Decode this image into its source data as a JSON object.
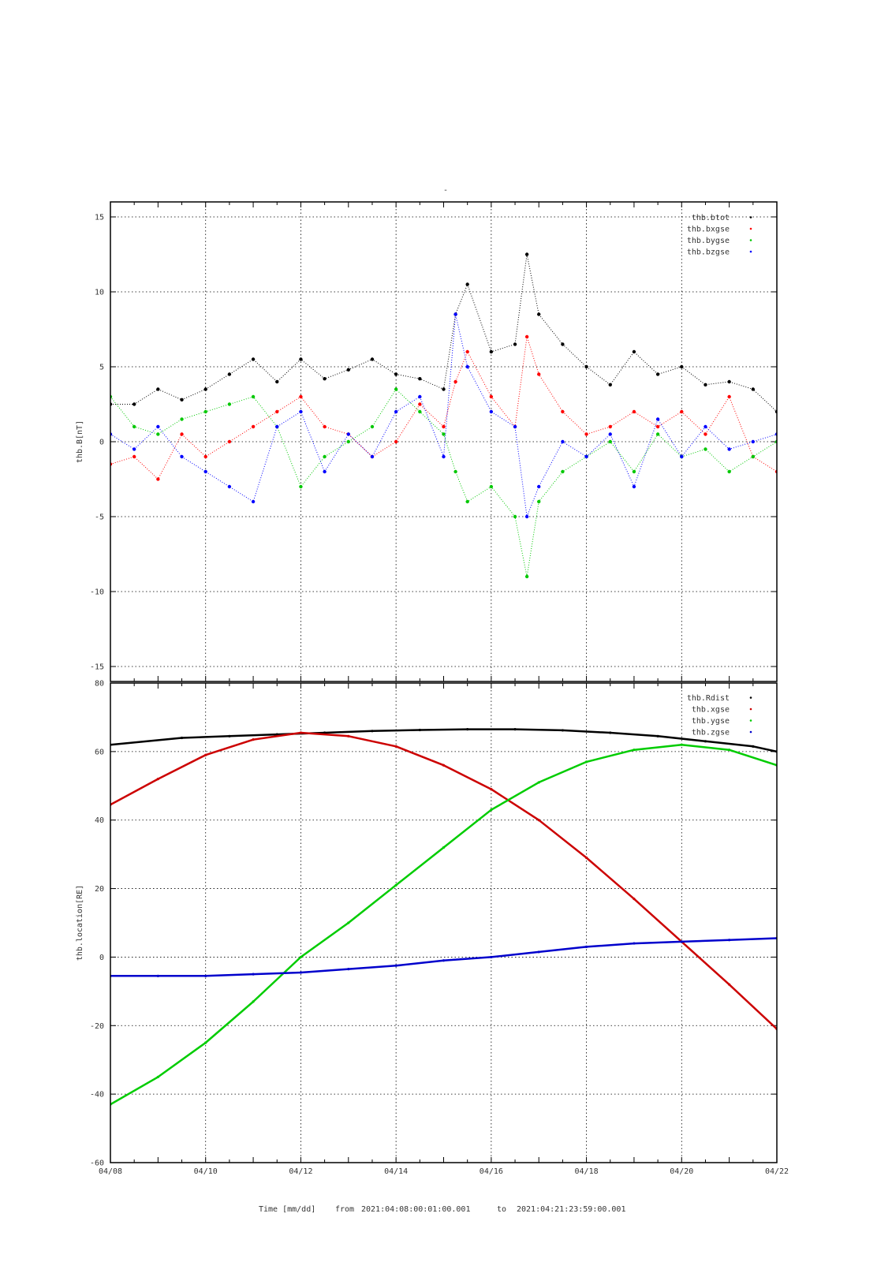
{
  "figure": {
    "top_title": "-",
    "footer": {
      "time_label": "Time [mm/dd]",
      "from_label": "from",
      "from_value": "2021:04:08:00:01:00.001",
      "to_label": "to",
      "to_value": "2021:04:21:23:59:00.001"
    }
  },
  "chart_data": [
    {
      "type": "scatter",
      "panel": "magnetic-field",
      "ylabel": "thb.B[nT]",
      "ylim": [
        -16,
        16
      ],
      "yticks": [
        "-15",
        "-10",
        "-5",
        "0",
        "5",
        "10",
        "15"
      ],
      "ytick_values": [
        -15,
        -10,
        -5,
        0,
        5,
        10,
        15
      ],
      "xlim_days": [
        8,
        22
      ],
      "grid": true,
      "legend_placement": "top-right",
      "series": [
        {
          "name": "thb.btot",
          "color": "#000000",
          "x": [
            "04/08 00:00",
            "04/08 12:00",
            "04/09 00:00",
            "04/09 12:00",
            "04/10 00:00",
            "04/10 12:00",
            "04/11 00:00",
            "04/11 12:00",
            "04/12 00:00",
            "04/12 12:00",
            "04/13 00:00",
            "04/13 12:00",
            "04/14 00:00",
            "04/14 12:00",
            "04/15 00:00",
            "04/15 06:00",
            "04/15 12:00",
            "04/16 00:00",
            "04/16 12:00",
            "04/16 18:00",
            "04/17 00:00",
            "04/17 12:00",
            "04/18 00:00",
            "04/18 12:00",
            "04/19 00:00",
            "04/19 12:00",
            "04/20 00:00",
            "04/20 12:00",
            "04/21 00:00",
            "04/21 12:00",
            "04/22 00:00"
          ],
          "values": [
            2.5,
            2.5,
            3.5,
            2.8,
            3.5,
            4.5,
            5.5,
            4.0,
            5.5,
            4.2,
            4.8,
            5.5,
            4.5,
            4.2,
            3.5,
            8.5,
            10.5,
            6.0,
            6.5,
            12.5,
            8.5,
            6.5,
            5.0,
            3.8,
            6.0,
            4.5,
            5.0,
            3.8,
            4.0,
            3.5,
            2.0
          ]
        },
        {
          "name": "thb.bxgse",
          "color": "#ff0000",
          "x": [
            "04/08 00:00",
            "04/08 12:00",
            "04/09 00:00",
            "04/09 12:00",
            "04/10 00:00",
            "04/10 12:00",
            "04/11 00:00",
            "04/11 12:00",
            "04/12 00:00",
            "04/12 12:00",
            "04/13 00:00",
            "04/13 12:00",
            "04/14 00:00",
            "04/14 12:00",
            "04/15 00:00",
            "04/15 06:00",
            "04/15 12:00",
            "04/16 00:00",
            "04/16 12:00",
            "04/16 18:00",
            "04/17 00:00",
            "04/17 12:00",
            "04/18 00:00",
            "04/18 12:00",
            "04/19 00:00",
            "04/19 12:00",
            "04/20 00:00",
            "04/20 12:00",
            "04/21 00:00",
            "04/21 12:00",
            "04/22 00:00"
          ],
          "values": [
            -1.5,
            -1.0,
            -2.5,
            0.5,
            -1.0,
            0.0,
            1.0,
            2.0,
            3.0,
            1.0,
            0.5,
            -1.0,
            0.0,
            2.5,
            1.0,
            4.0,
            6.0,
            3.0,
            1.0,
            7.0,
            4.5,
            2.0,
            0.5,
            1.0,
            2.0,
            1.0,
            2.0,
            0.5,
            3.0,
            -1.0,
            -2.0
          ]
        },
        {
          "name": "thb.bygse",
          "color": "#00c800",
          "x": [
            "04/08 00:00",
            "04/08 12:00",
            "04/09 00:00",
            "04/09 12:00",
            "04/10 00:00",
            "04/10 12:00",
            "04/11 00:00",
            "04/11 12:00",
            "04/12 00:00",
            "04/12 12:00",
            "04/13 00:00",
            "04/13 12:00",
            "04/14 00:00",
            "04/14 12:00",
            "04/15 00:00",
            "04/15 06:00",
            "04/15 12:00",
            "04/16 00:00",
            "04/16 12:00",
            "04/16 18:00",
            "04/17 00:00",
            "04/17 12:00",
            "04/18 00:00",
            "04/18 12:00",
            "04/19 00:00",
            "04/19 12:00",
            "04/20 00:00",
            "04/20 12:00",
            "04/21 00:00",
            "04/21 12:00",
            "04/22 00:00"
          ],
          "values": [
            3.0,
            1.0,
            0.5,
            1.5,
            2.0,
            2.5,
            3.0,
            1.0,
            -3.0,
            -1.0,
            0.0,
            1.0,
            3.5,
            2.0,
            0.5,
            -2.0,
            -4.0,
            -3.0,
            -5.0,
            -9.0,
            -4.0,
            -2.0,
            -1.0,
            0.0,
            -2.0,
            0.5,
            -1.0,
            -0.5,
            -2.0,
            -1.0,
            0.0
          ]
        },
        {
          "name": "thb.bzgse",
          "color": "#0000ff",
          "x": [
            "04/08 00:00",
            "04/08 12:00",
            "04/09 00:00",
            "04/09 12:00",
            "04/10 00:00",
            "04/10 12:00",
            "04/11 00:00",
            "04/11 12:00",
            "04/12 00:00",
            "04/12 12:00",
            "04/13 00:00",
            "04/13 12:00",
            "04/14 00:00",
            "04/14 12:00",
            "04/15 00:00",
            "04/15 06:00",
            "04/15 12:00",
            "04/16 00:00",
            "04/16 12:00",
            "04/16 18:00",
            "04/17 00:00",
            "04/17 12:00",
            "04/18 00:00",
            "04/18 12:00",
            "04/19 00:00",
            "04/19 12:00",
            "04/20 00:00",
            "04/20 12:00",
            "04/21 00:00",
            "04/21 12:00",
            "04/22 00:00"
          ],
          "values": [
            0.5,
            -0.5,
            1.0,
            -1.0,
            -2.0,
            -3.0,
            -4.0,
            1.0,
            2.0,
            -2.0,
            0.5,
            -1.0,
            2.0,
            3.0,
            -1.0,
            8.5,
            5.0,
            2.0,
            1.0,
            -5.0,
            -3.0,
            0.0,
            -1.0,
            0.5,
            -3.0,
            1.5,
            -1.0,
            1.0,
            -0.5,
            0.0,
            0.5
          ]
        }
      ]
    },
    {
      "type": "line",
      "panel": "location",
      "ylabel": "thb.location[RE]",
      "ylim": [
        -60,
        80
      ],
      "yticks": [
        "-60",
        "-40",
        "-20",
        "0",
        "20",
        "40",
        "60",
        "80"
      ],
      "ytick_values": [
        -60,
        -40,
        -20,
        0,
        20,
        40,
        60,
        80
      ],
      "xlim_days": [
        8,
        22
      ],
      "xtick_labels": [
        "04/08",
        "04/10",
        "04/12",
        "04/14",
        "04/16",
        "04/18",
        "04/20",
        "04/22"
      ],
      "xtick_days": [
        8,
        10,
        12,
        14,
        16,
        18,
        20,
        22
      ],
      "grid": true,
      "legend_placement": "top-right",
      "series": [
        {
          "name": "thb.Rdist",
          "color": "#000000",
          "x": [
            "04/08 00:00",
            "04/09 12:00",
            "04/10 12:00",
            "04/11 12:00",
            "04/12 12:00",
            "04/13 12:00",
            "04/14 12:00",
            "04/15 12:00",
            "04/16 12:00",
            "04/17 12:00",
            "04/18 12:00",
            "04/19 12:00",
            "04/20 12:00",
            "04/21 12:00",
            "04/22 00:00"
          ],
          "values": [
            62,
            64,
            64.5,
            65,
            65.5,
            66,
            66.3,
            66.5,
            66.5,
            66.2,
            65.5,
            64.5,
            63,
            61.5,
            60
          ]
        },
        {
          "name": "thb.xgse",
          "color": "#cc0000",
          "x": [
            "04/08 00:00",
            "04/09 00:00",
            "04/10 00:00",
            "04/11 00:00",
            "04/12 00:00",
            "04/13 00:00",
            "04/14 00:00",
            "04/15 00:00",
            "04/16 00:00",
            "04/17 00:00",
            "04/18 00:00",
            "04/19 00:00",
            "04/20 00:00",
            "04/21 00:00",
            "04/22 00:00"
          ],
          "values": [
            44.5,
            52,
            59,
            63.5,
            65.5,
            64.5,
            61.5,
            56,
            49,
            40,
            29,
            17,
            4.5,
            -8,
            -21
          ]
        },
        {
          "name": "thb.ygse",
          "color": "#00cc00",
          "x": [
            "04/08 00:00",
            "04/09 00:00",
            "04/10 00:00",
            "04/11 00:00",
            "04/12 00:00",
            "04/13 00:00",
            "04/14 00:00",
            "04/15 00:00",
            "04/16 00:00",
            "04/17 00:00",
            "04/18 00:00",
            "04/19 00:00",
            "04/20 00:00",
            "04/21 00:00",
            "04/22 00:00"
          ],
          "values": [
            -43,
            -35,
            -25,
            -13,
            0,
            10,
            21,
            32,
            43,
            51,
            57,
            60.5,
            62,
            60.5,
            56
          ]
        },
        {
          "name": "thb.zgse",
          "color": "#0000cc",
          "x": [
            "04/08 00:00",
            "04/09 00:00",
            "04/10 00:00",
            "04/11 00:00",
            "04/12 00:00",
            "04/13 00:00",
            "04/14 00:00",
            "04/15 00:00",
            "04/16 00:00",
            "04/17 00:00",
            "04/18 00:00",
            "04/19 00:00",
            "04/20 00:00",
            "04/21 00:00",
            "04/22 00:00"
          ],
          "values": [
            -5.5,
            -5.5,
            -5.5,
            -5,
            -4.5,
            -3.5,
            -2.5,
            -1,
            0,
            1.5,
            3,
            4,
            4.5,
            5,
            5.5
          ]
        }
      ]
    }
  ]
}
